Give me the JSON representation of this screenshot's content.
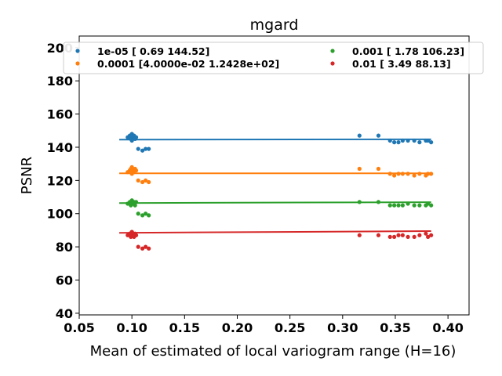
{
  "chart_data": {
    "type": "scatter",
    "title": "mgard",
    "xlabel": "Mean of estimated of local variogram range (H=16)",
    "ylabel": "PSNR",
    "xlim": [
      0.05,
      0.42
    ],
    "ylim": [
      39,
      207
    ],
    "xticks": [
      "0.05",
      "0.10",
      "0.15",
      "0.20",
      "0.25",
      "0.30",
      "0.35",
      "0.40"
    ],
    "yticks": [
      "40",
      "60",
      "80",
      "100",
      "120",
      "140",
      "160",
      "180",
      "200"
    ],
    "grid": false,
    "legend_position": "top",
    "series": [
      {
        "name": "1e-05 [  0.69 144.52]",
        "color": "#1f77b4",
        "fit": {
          "slope": 0.69,
          "intercept": 144.52
        },
        "fit_range": [
          0.088,
          0.384
        ],
        "x": [
          0.096,
          0.098,
          0.099,
          0.1,
          0.101,
          0.102,
          0.103,
          0.1,
          0.098,
          0.104,
          0.106,
          0.11,
          0.113,
          0.116,
          0.316,
          0.334,
          0.345,
          0.349,
          0.353,
          0.357,
          0.362,
          0.368,
          0.373,
          0.379,
          0.381,
          0.384
        ],
        "y": [
          146,
          147,
          145,
          148,
          146,
          147,
          145,
          144,
          146,
          146,
          139,
          138,
          139,
          139,
          147,
          147,
          144,
          143,
          143,
          144,
          144,
          144,
          143,
          144,
          144,
          143
        ]
      },
      {
        "name": "0.0001 [4.0000e-02 1.2428e+02]",
        "color": "#ff7f0e",
        "fit": {
          "slope": 0.04,
          "intercept": 124.28
        },
        "fit_range": [
          0.088,
          0.384
        ],
        "x": [
          0.096,
          0.098,
          0.099,
          0.1,
          0.101,
          0.102,
          0.103,
          0.1,
          0.098,
          0.104,
          0.106,
          0.11,
          0.113,
          0.116,
          0.316,
          0.334,
          0.345,
          0.349,
          0.353,
          0.357,
          0.362,
          0.368,
          0.373,
          0.379,
          0.381,
          0.384
        ],
        "y": [
          125,
          126,
          127,
          128,
          126,
          125,
          127,
          124,
          126,
          126,
          120,
          119,
          120,
          119,
          127,
          127,
          124,
          123,
          124,
          124,
          124,
          123,
          124,
          123,
          124,
          124
        ]
      },
      {
        "name": "0.001 [  1.78 106.23]",
        "color": "#2ca02c",
        "fit": {
          "slope": 1.78,
          "intercept": 106.23
        },
        "fit_range": [
          0.088,
          0.384
        ],
        "x": [
          0.096,
          0.098,
          0.099,
          0.1,
          0.101,
          0.102,
          0.103,
          0.1,
          0.098,
          0.104,
          0.106,
          0.11,
          0.113,
          0.116,
          0.316,
          0.334,
          0.345,
          0.349,
          0.353,
          0.357,
          0.362,
          0.368,
          0.373,
          0.379,
          0.381,
          0.384
        ],
        "y": [
          106,
          107,
          105,
          108,
          106,
          107,
          105,
          106,
          106,
          107,
          100,
          99,
          100,
          99,
          107,
          107,
          105,
          105,
          105,
          105,
          106,
          105,
          105,
          105,
          106,
          105
        ]
      },
      {
        "name": "0.01 [ 3.49 88.13]",
        "color": "#d62728",
        "fit": {
          "slope": 3.49,
          "intercept": 88.13
        },
        "fit_range": [
          0.088,
          0.384
        ],
        "x": [
          0.096,
          0.098,
          0.099,
          0.1,
          0.101,
          0.102,
          0.103,
          0.1,
          0.098,
          0.104,
          0.106,
          0.11,
          0.113,
          0.116,
          0.316,
          0.334,
          0.345,
          0.349,
          0.353,
          0.357,
          0.362,
          0.368,
          0.373,
          0.379,
          0.381,
          0.384
        ],
        "y": [
          87,
          88,
          86,
          89,
          87,
          86,
          88,
          89,
          87,
          87,
          80,
          79,
          80,
          79,
          87,
          87,
          86,
          86,
          87,
          87,
          86,
          86,
          87,
          88,
          86,
          87
        ]
      }
    ]
  }
}
